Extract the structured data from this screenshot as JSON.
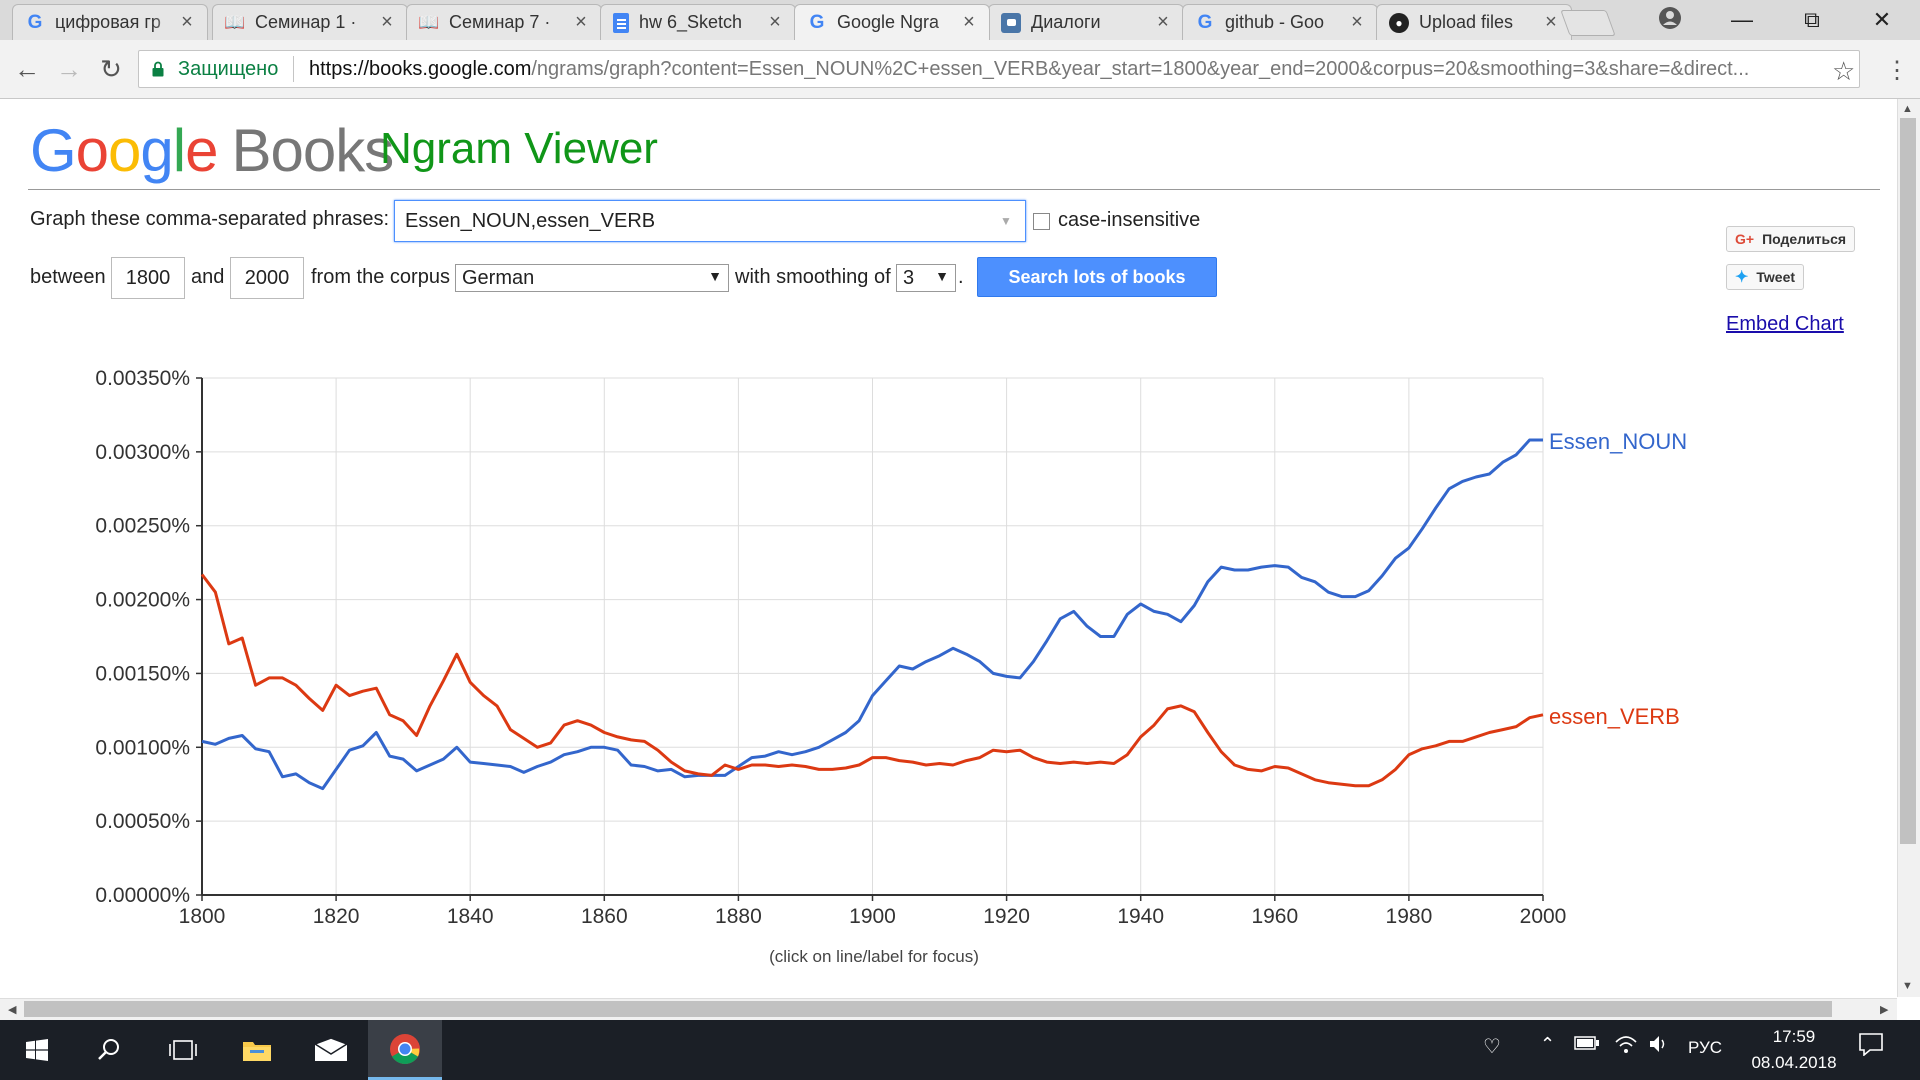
{
  "browser": {
    "tabs": [
      {
        "title": "цифровая гр",
        "favicon": "google-g-icon"
      },
      {
        "title": "Семинар 1 ·",
        "favicon": "book-icon"
      },
      {
        "title": "Семинар 7 ·",
        "favicon": "book-icon"
      },
      {
        "title": "hw 6_Sketch",
        "favicon": "google-docs-icon"
      },
      {
        "title": "Google Ngra",
        "favicon": "google-g-icon",
        "active": true
      },
      {
        "title": "Диалоги",
        "favicon": "vk-messages-icon"
      },
      {
        "title": "github - Goo",
        "favicon": "google-g-icon"
      },
      {
        "title": "Upload files",
        "favicon": "github-icon"
      }
    ],
    "secure_label": "Защищено",
    "url_host": "https://books.google.com",
    "url_rest": "/ngrams/graph?content=Essen_NOUN%2C+essen_VERB&year_start=1800&year_end=2000&corpus=20&smoothing=3&share=&direct..."
  },
  "page": {
    "logo_google": "Google",
    "logo_books": "Books",
    "app_name": "Ngram Viewer",
    "phrases_label": "Graph these comma-separated phrases:",
    "phrases_value": "Essen_NOUN,essen_VERB",
    "case_insensitive_label": "case-insensitive",
    "between_label": "between",
    "year_start": "1800",
    "and_label": "and",
    "year_end": "2000",
    "corpus_label": "from the corpus",
    "corpus_value": "German",
    "smoothing_label": "with smoothing of",
    "smoothing_value": "3",
    "period": ".",
    "search_button": "Search lots of books",
    "share_label": "Поделиться",
    "tweet_label": "Tweet",
    "embed_label": "Embed Chart",
    "hint": "(click on line/label for focus)"
  },
  "chart_data": {
    "type": "line",
    "ylim": [
      0,
      0.0035
    ],
    "xlim": [
      1800,
      2000
    ],
    "x_ticks": [
      1800,
      1820,
      1840,
      1860,
      1880,
      1900,
      1920,
      1940,
      1960,
      1980,
      2000
    ],
    "y_ticks": [
      "0.00000%",
      "0.00050%",
      "0.00100%",
      "0.00150%",
      "0.00200%",
      "0.00250%",
      "0.00300%",
      "0.00350%"
    ],
    "y_tick_values": [
      0,
      0.0005,
      0.001,
      0.0015,
      0.002,
      0.0025,
      0.003,
      0.0035
    ],
    "grid": true,
    "series": [
      {
        "name": "Essen_NOUN",
        "color": "#3366cc",
        "points": [
          [
            1800,
            0.00104
          ],
          [
            1802,
            0.00102
          ],
          [
            1804,
            0.00106
          ],
          [
            1806,
            0.00108
          ],
          [
            1808,
            0.00099
          ],
          [
            1810,
            0.00097
          ],
          [
            1812,
            0.0008
          ],
          [
            1814,
            0.00082
          ],
          [
            1816,
            0.00076
          ],
          [
            1818,
            0.00072
          ],
          [
            1820,
            0.00085
          ],
          [
            1822,
            0.00098
          ],
          [
            1824,
            0.00101
          ],
          [
            1826,
            0.0011
          ],
          [
            1828,
            0.00094
          ],
          [
            1830,
            0.00092
          ],
          [
            1832,
            0.00084
          ],
          [
            1834,
            0.00088
          ],
          [
            1836,
            0.00092
          ],
          [
            1838,
            0.001
          ],
          [
            1840,
            0.0009
          ],
          [
            1842,
            0.00089
          ],
          [
            1844,
            0.00088
          ],
          [
            1846,
            0.00087
          ],
          [
            1848,
            0.00083
          ],
          [
            1850,
            0.00087
          ],
          [
            1852,
            0.0009
          ],
          [
            1854,
            0.00095
          ],
          [
            1856,
            0.00097
          ],
          [
            1858,
            0.001
          ],
          [
            1860,
            0.001
          ],
          [
            1862,
            0.00098
          ],
          [
            1864,
            0.00088
          ],
          [
            1866,
            0.00087
          ],
          [
            1868,
            0.00084
          ],
          [
            1870,
            0.00085
          ],
          [
            1872,
            0.0008
          ],
          [
            1874,
            0.00081
          ],
          [
            1876,
            0.00081
          ],
          [
            1878,
            0.00081
          ],
          [
            1880,
            0.00087
          ],
          [
            1882,
            0.00093
          ],
          [
            1884,
            0.00094
          ],
          [
            1886,
            0.00097
          ],
          [
            1888,
            0.00095
          ],
          [
            1890,
            0.00097
          ],
          [
            1892,
            0.001
          ],
          [
            1894,
            0.00105
          ],
          [
            1896,
            0.0011
          ],
          [
            1898,
            0.00118
          ],
          [
            1900,
            0.00135
          ],
          [
            1902,
            0.00145
          ],
          [
            1904,
            0.00155
          ],
          [
            1906,
            0.00153
          ],
          [
            1908,
            0.00158
          ],
          [
            1910,
            0.00162
          ],
          [
            1912,
            0.00167
          ],
          [
            1914,
            0.00163
          ],
          [
            1916,
            0.00158
          ],
          [
            1918,
            0.0015
          ],
          [
            1920,
            0.00148
          ],
          [
            1922,
            0.00147
          ],
          [
            1924,
            0.00158
          ],
          [
            1926,
            0.00172
          ],
          [
            1928,
            0.00187
          ],
          [
            1930,
            0.00192
          ],
          [
            1932,
            0.00182
          ],
          [
            1934,
            0.00175
          ],
          [
            1936,
            0.00175
          ],
          [
            1938,
            0.0019
          ],
          [
            1940,
            0.00197
          ],
          [
            1942,
            0.00192
          ],
          [
            1944,
            0.0019
          ],
          [
            1946,
            0.00185
          ],
          [
            1948,
            0.00196
          ],
          [
            1950,
            0.00212
          ],
          [
            1952,
            0.00222
          ],
          [
            1954,
            0.0022
          ],
          [
            1956,
            0.0022
          ],
          [
            1958,
            0.00222
          ],
          [
            1960,
            0.00223
          ],
          [
            1962,
            0.00222
          ],
          [
            1964,
            0.00215
          ],
          [
            1966,
            0.00212
          ],
          [
            1968,
            0.00205
          ],
          [
            1970,
            0.00202
          ],
          [
            1972,
            0.00202
          ],
          [
            1974,
            0.00206
          ],
          [
            1976,
            0.00216
          ],
          [
            1978,
            0.00228
          ],
          [
            1980,
            0.00235
          ],
          [
            1982,
            0.00248
          ],
          [
            1984,
            0.00262
          ],
          [
            1986,
            0.00275
          ],
          [
            1988,
            0.0028
          ],
          [
            1990,
            0.00283
          ],
          [
            1992,
            0.00285
          ],
          [
            1994,
            0.00293
          ],
          [
            1996,
            0.00298
          ],
          [
            1998,
            0.00308
          ],
          [
            2000,
            0.00308
          ]
        ]
      },
      {
        "name": "essen_VERB",
        "color": "#dc3912",
        "points": [
          [
            1800,
            0.00217
          ],
          [
            1802,
            0.00205
          ],
          [
            1804,
            0.0017
          ],
          [
            1806,
            0.00174
          ],
          [
            1808,
            0.00142
          ],
          [
            1810,
            0.00147
          ],
          [
            1812,
            0.00147
          ],
          [
            1814,
            0.00142
          ],
          [
            1816,
            0.00133
          ],
          [
            1818,
            0.00125
          ],
          [
            1820,
            0.00142
          ],
          [
            1822,
            0.00135
          ],
          [
            1824,
            0.00138
          ],
          [
            1826,
            0.0014
          ],
          [
            1828,
            0.00122
          ],
          [
            1830,
            0.00118
          ],
          [
            1832,
            0.00108
          ],
          [
            1834,
            0.00128
          ],
          [
            1836,
            0.00145
          ],
          [
            1838,
            0.00163
          ],
          [
            1840,
            0.00144
          ],
          [
            1842,
            0.00135
          ],
          [
            1844,
            0.00128
          ],
          [
            1846,
            0.00112
          ],
          [
            1848,
            0.00106
          ],
          [
            1850,
            0.001
          ],
          [
            1852,
            0.00103
          ],
          [
            1854,
            0.00115
          ],
          [
            1856,
            0.00118
          ],
          [
            1858,
            0.00115
          ],
          [
            1860,
            0.0011
          ],
          [
            1862,
            0.00107
          ],
          [
            1864,
            0.00105
          ],
          [
            1866,
            0.00104
          ],
          [
            1868,
            0.00098
          ],
          [
            1870,
            0.0009
          ],
          [
            1872,
            0.00084
          ],
          [
            1874,
            0.00082
          ],
          [
            1876,
            0.00081
          ],
          [
            1878,
            0.00088
          ],
          [
            1880,
            0.00085
          ],
          [
            1882,
            0.00088
          ],
          [
            1884,
            0.00088
          ],
          [
            1886,
            0.00087
          ],
          [
            1888,
            0.00088
          ],
          [
            1890,
            0.00087
          ],
          [
            1892,
            0.00085
          ],
          [
            1894,
            0.00085
          ],
          [
            1896,
            0.00086
          ],
          [
            1898,
            0.00088
          ],
          [
            1900,
            0.00093
          ],
          [
            1902,
            0.00093
          ],
          [
            1904,
            0.00091
          ],
          [
            1906,
            0.0009
          ],
          [
            1908,
            0.00088
          ],
          [
            1910,
            0.00089
          ],
          [
            1912,
            0.00088
          ],
          [
            1914,
            0.00091
          ],
          [
            1916,
            0.00093
          ],
          [
            1918,
            0.00098
          ],
          [
            1920,
            0.00097
          ],
          [
            1922,
            0.00098
          ],
          [
            1924,
            0.00093
          ],
          [
            1926,
            0.0009
          ],
          [
            1928,
            0.00089
          ],
          [
            1930,
            0.0009
          ],
          [
            1932,
            0.00089
          ],
          [
            1934,
            0.0009
          ],
          [
            1936,
            0.00089
          ],
          [
            1938,
            0.00095
          ],
          [
            1940,
            0.00107
          ],
          [
            1942,
            0.00115
          ],
          [
            1944,
            0.00126
          ],
          [
            1946,
            0.00128
          ],
          [
            1948,
            0.00124
          ],
          [
            1950,
            0.0011
          ],
          [
            1952,
            0.00097
          ],
          [
            1954,
            0.00088
          ],
          [
            1956,
            0.00085
          ],
          [
            1958,
            0.00084
          ],
          [
            1960,
            0.00087
          ],
          [
            1962,
            0.00086
          ],
          [
            1964,
            0.00082
          ],
          [
            1966,
            0.00078
          ],
          [
            1968,
            0.00076
          ],
          [
            1970,
            0.00075
          ],
          [
            1972,
            0.00074
          ],
          [
            1974,
            0.00074
          ],
          [
            1976,
            0.00078
          ],
          [
            1978,
            0.00085
          ],
          [
            1980,
            0.00095
          ],
          [
            1982,
            0.00099
          ],
          [
            1984,
            0.00101
          ],
          [
            1986,
            0.00104
          ],
          [
            1988,
            0.00104
          ],
          [
            1990,
            0.00107
          ],
          [
            1992,
            0.0011
          ],
          [
            1994,
            0.00112
          ],
          [
            1996,
            0.00114
          ],
          [
            1998,
            0.0012
          ],
          [
            2000,
            0.00122
          ]
        ]
      }
    ]
  },
  "taskbar": {
    "language": "РУС",
    "time": "17:59",
    "date": "08.04.2018"
  }
}
